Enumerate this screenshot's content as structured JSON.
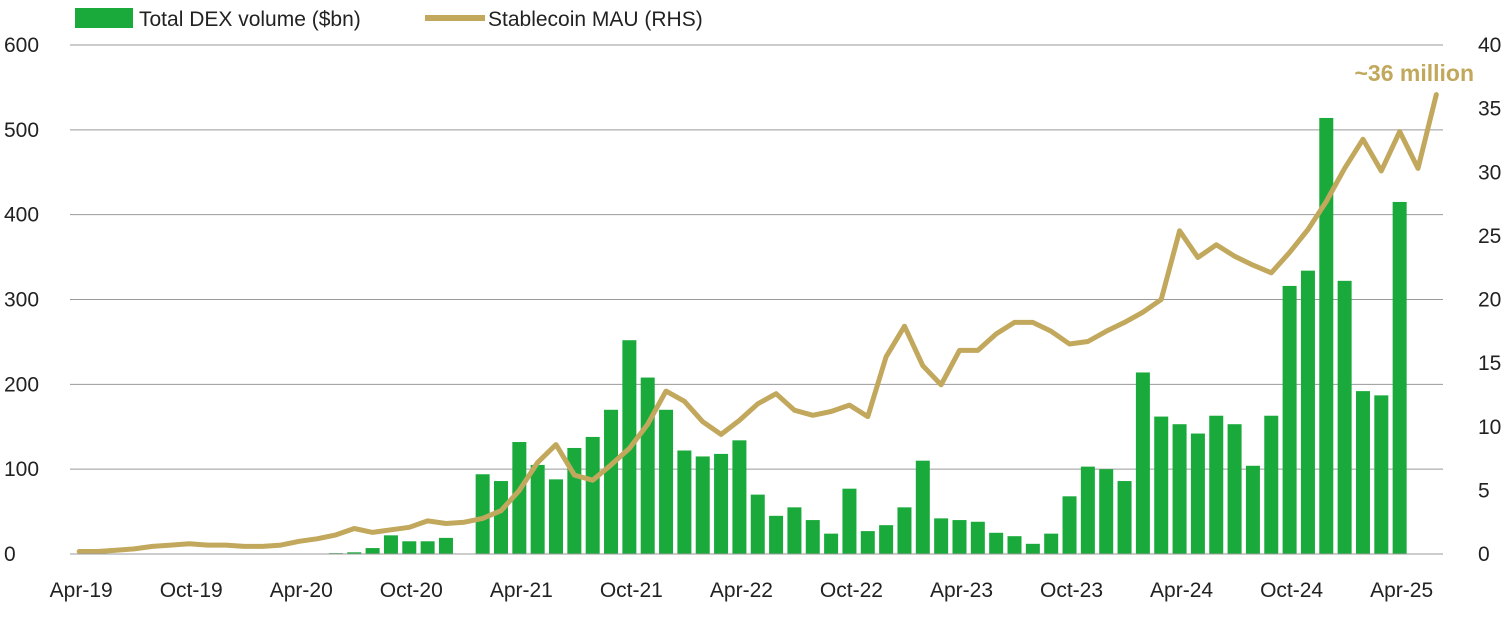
{
  "chart_data": {
    "type": "bar+line",
    "title": "",
    "legend": {
      "position": "top-left",
      "items": [
        {
          "name": "Total DEX volume ($bn)",
          "kind": "bar",
          "color": "#1aaa3c"
        },
        {
          "name": "Stablecoin MAU (RHS)",
          "kind": "line",
          "color": "#c2a85c"
        }
      ]
    },
    "x_tick_labels": [
      "Apr-19",
      "Oct-19",
      "Apr-20",
      "Oct-20",
      "Apr-21",
      "Oct-21",
      "Apr-22",
      "Oct-22",
      "Apr-23",
      "Oct-23",
      "Apr-24",
      "Oct-24",
      "Apr-25"
    ],
    "y_left": {
      "min": 0,
      "max": 600,
      "ticks": [
        "0",
        "100",
        "200",
        "300",
        "400",
        "500",
        "600"
      ]
    },
    "y_right": {
      "min": 0,
      "max": 40,
      "ticks": [
        "0",
        "5",
        "10",
        "15",
        "20",
        "25",
        "30",
        "35",
        "40"
      ]
    },
    "months": 75,
    "start_month": "Apr-19",
    "series": [
      {
        "name": "Total DEX volume ($bn)",
        "axis": "left",
        "color": "#1aaa3c",
        "values": [
          0,
          0,
          0,
          0,
          0,
          0,
          0,
          0,
          0,
          0,
          0,
          0,
          0,
          0,
          1,
          2,
          7,
          22,
          15,
          15,
          19,
          0,
          94,
          86,
          132,
          105,
          88,
          125,
          138,
          170,
          252,
          208,
          170,
          122,
          115,
          118,
          134,
          70,
          45,
          55,
          40,
          24,
          77,
          27,
          34,
          55,
          110,
          42,
          40,
          38,
          25,
          21,
          12,
          24,
          68,
          103,
          100,
          86,
          214,
          162,
          153,
          142,
          163,
          153,
          104,
          163,
          316,
          334,
          514,
          322,
          192,
          187,
          415,
          0,
          0
        ]
      },
      {
        "name": "Stablecoin MAU (RHS)",
        "axis": "right",
        "color": "#c2a85c",
        "values": [
          0.2,
          0.2,
          0.3,
          0.4,
          0.6,
          0.7,
          0.8,
          0.7,
          0.7,
          0.6,
          0.6,
          0.7,
          1.0,
          1.2,
          1.5,
          2.0,
          1.7,
          1.9,
          2.1,
          2.6,
          2.4,
          2.5,
          2.8,
          3.4,
          5.0,
          7.2,
          8.6,
          6.2,
          5.8,
          7.0,
          8.3,
          10.2,
          12.8,
          12.0,
          10.4,
          9.4,
          10.5,
          11.8,
          12.6,
          11.3,
          10.9,
          11.2,
          11.7,
          10.8,
          15.5,
          17.9,
          14.8,
          13.3,
          16.0,
          16.0,
          17.3,
          18.2,
          18.2,
          17.5,
          16.5,
          16.7,
          17.5,
          18.2,
          19.0,
          20.0,
          25.4,
          23.3,
          24.3,
          23.4,
          22.7,
          22.1,
          23.7,
          25.5,
          27.7,
          30.3,
          32.6,
          30.1,
          33.2,
          30.3,
          36.1
        ]
      }
    ],
    "annotations": [
      {
        "text": "~36 million",
        "anchor_series": "Stablecoin MAU (RHS)",
        "anchor_month": "Jun-25",
        "color": "#c2a85c"
      }
    ]
  }
}
